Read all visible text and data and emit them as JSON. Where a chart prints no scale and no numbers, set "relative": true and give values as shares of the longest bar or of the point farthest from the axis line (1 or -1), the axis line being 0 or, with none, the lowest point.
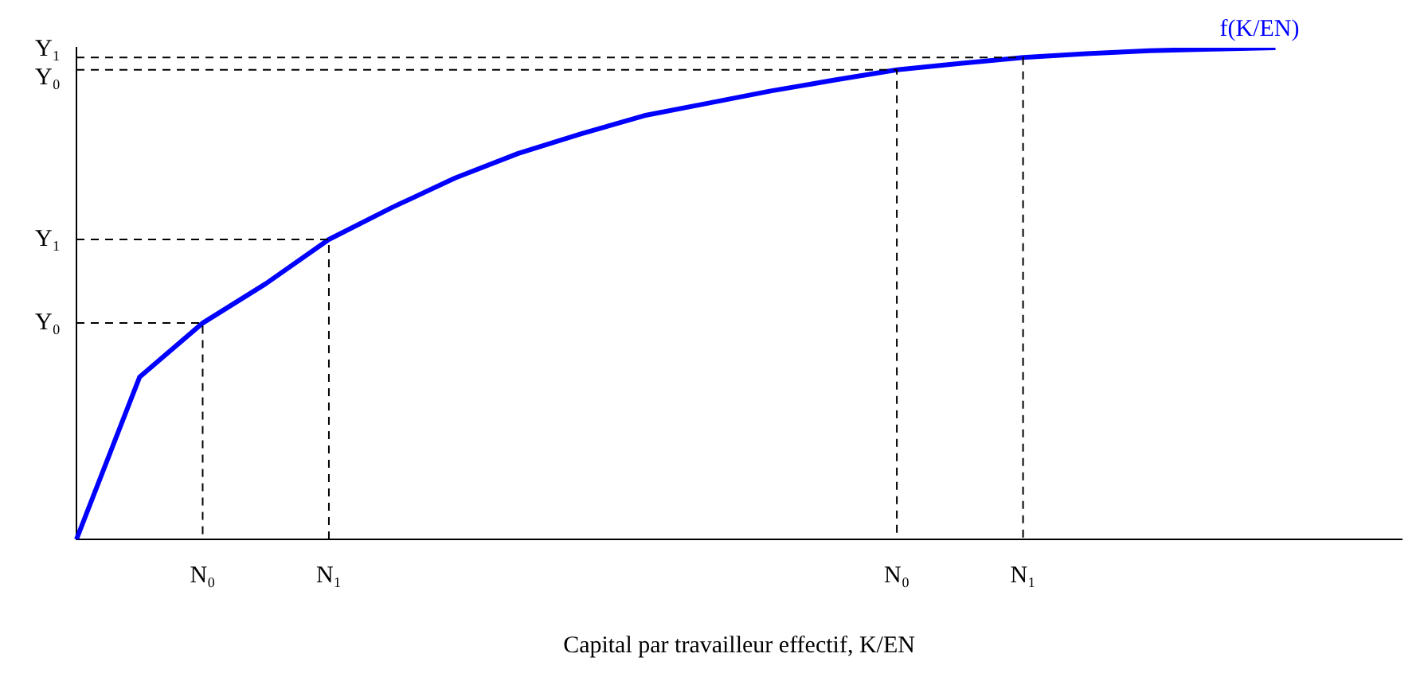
{
  "chart_data": {
    "type": "line",
    "xlabel": "Capital par travailleur effectif, K/EN",
    "relative": true,
    "categories": [
      null,
      null,
      "N₀",
      null,
      "N₁",
      null,
      null,
      null,
      null,
      null,
      null,
      null,
      null,
      "N₀",
      null,
      "N₁",
      null,
      null,
      null,
      null,
      null,
      null
    ],
    "ref_lines": [
      {
        "axis": "y",
        "value": 0.44,
        "label": "Y₀",
        "color": "#000000",
        "line_style": "dashed"
      },
      {
        "axis": "y",
        "value": 0.61,
        "label": "Y₁",
        "color": "#000000",
        "line_style": "dashed"
      },
      {
        "axis": "y",
        "value": 0.955,
        "label": "Y₀",
        "color": "#000000",
        "line_style": "dashed"
      },
      {
        "axis": "y",
        "value": 0.98,
        "label": "Y₁",
        "color": "#000000",
        "line_style": "dashed"
      }
    ],
    "series": [
      {
        "name": "f(K/EN)",
        "color": "#0000ff",
        "values": [
          0,
          0.33,
          0.44,
          0.52,
          0.61,
          0.675,
          0.735,
          0.785,
          0.825,
          0.862,
          0.887,
          0.912,
          0.934,
          0.955,
          0.968,
          0.98,
          0.988,
          0.994,
          0.997,
          1,
          null,
          null
        ]
      }
    ]
  }
}
